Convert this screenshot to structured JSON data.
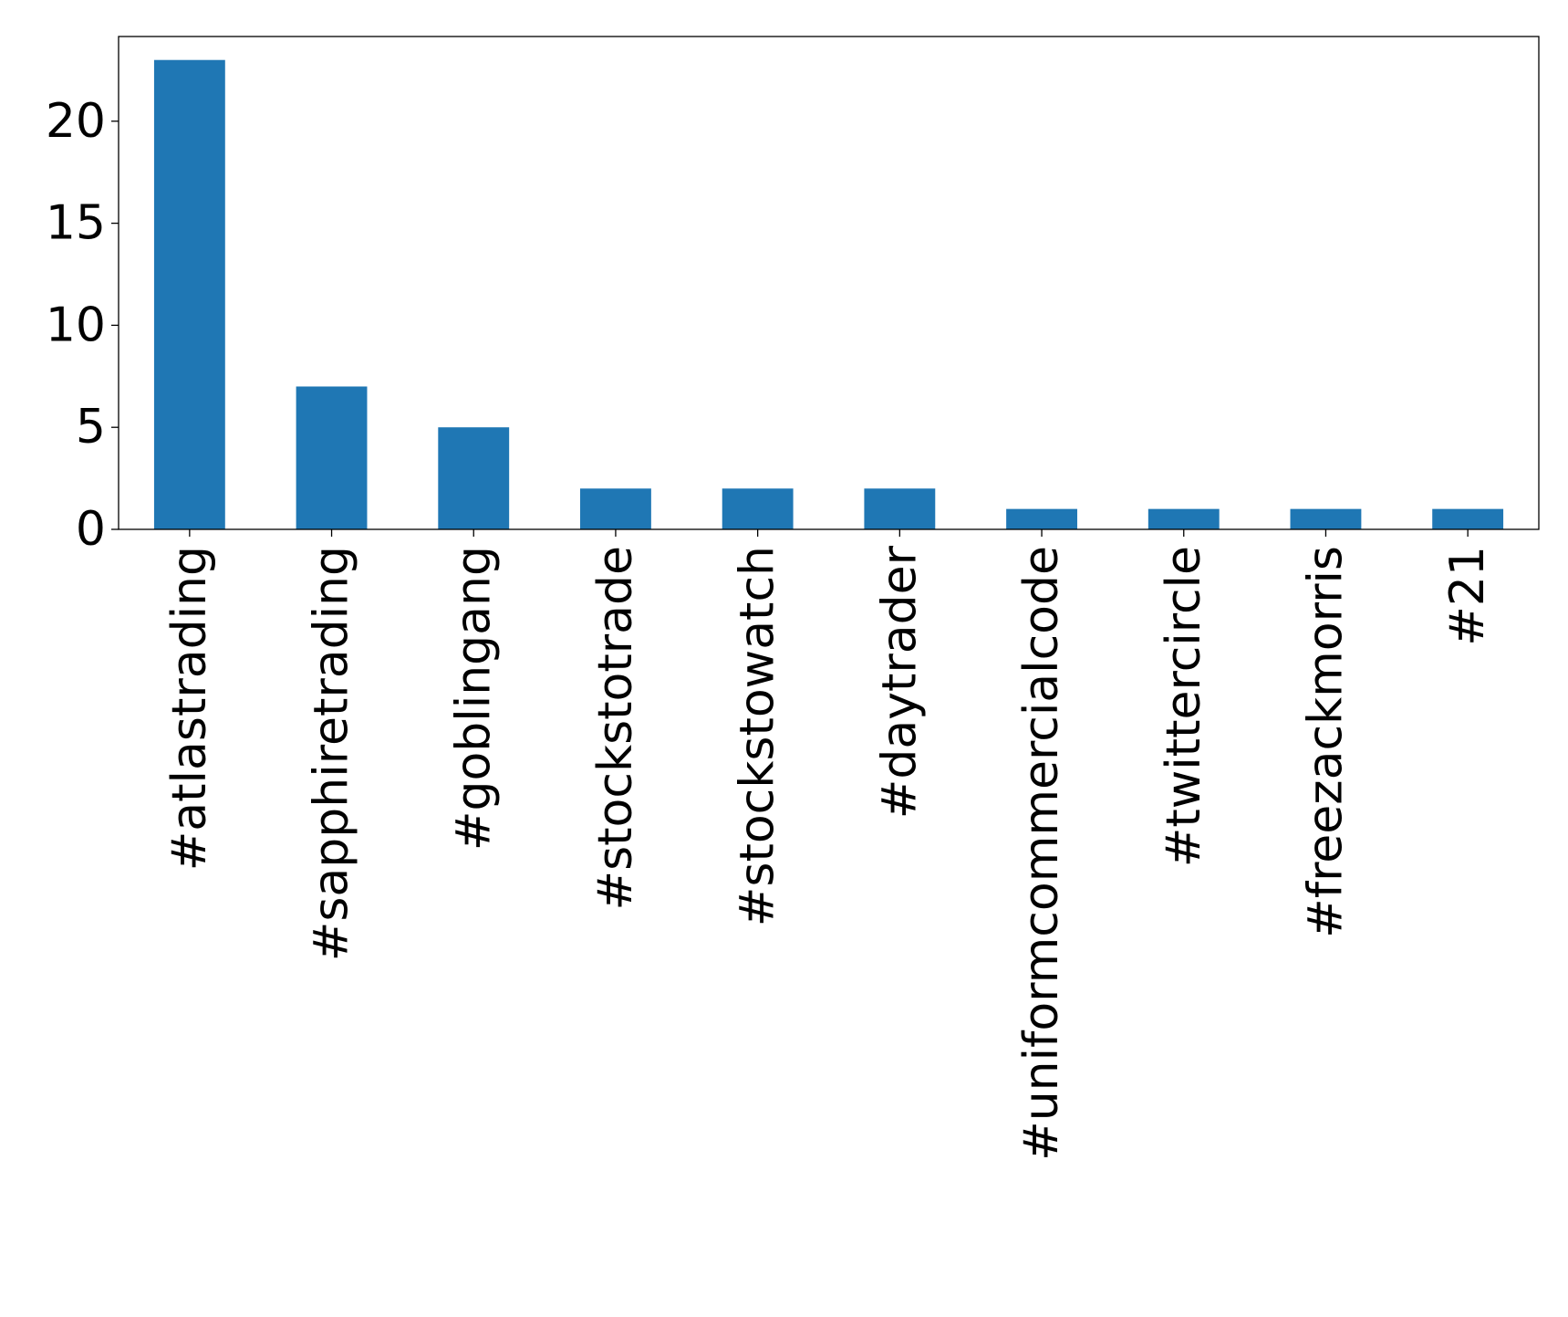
{
  "chart_data": {
    "type": "bar",
    "title": "",
    "xlabel": "",
    "ylabel": "",
    "categories": [
      "#atlastrading",
      "#sapphiretrading",
      "#goblingang",
      "#stockstotrade",
      "#stockstowatch",
      "#daytrader",
      "#uniformcommercialcode",
      "#twittercircle",
      "#freezackmorris",
      "#21"
    ],
    "values": [
      23,
      7,
      5,
      2,
      2,
      2,
      1,
      1,
      1,
      1
    ],
    "ylim": [
      0,
      24.15
    ],
    "yticks": [
      0,
      5,
      10,
      15,
      20
    ],
    "grid": false,
    "legend": "none",
    "bar_color": "#1f77b4"
  }
}
